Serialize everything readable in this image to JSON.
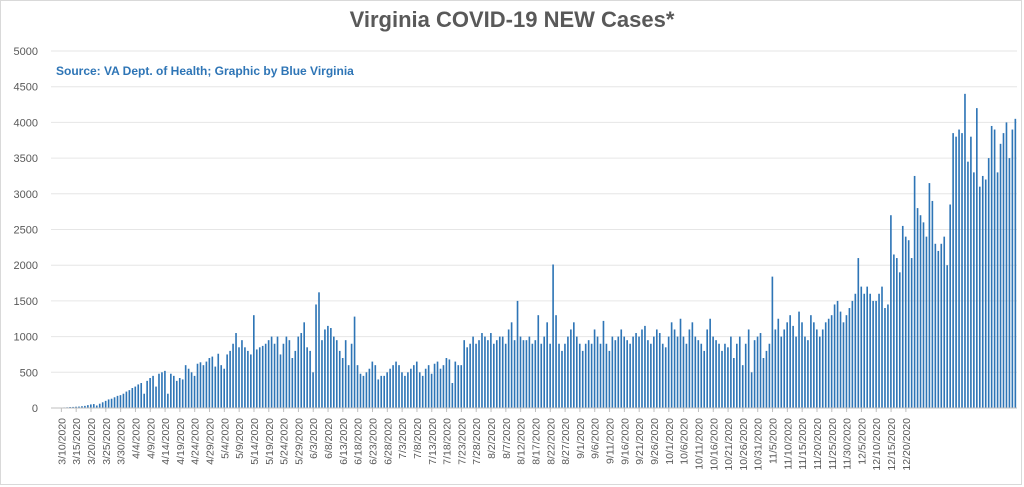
{
  "chart_data": {
    "type": "bar",
    "title": "Virginia COVID-19 NEW Cases*",
    "annotation": "Source: VA Dept. of Health; Graphic by Blue Virginia",
    "xlabel": "",
    "ylabel": "",
    "ylim": [
      0,
      5000
    ],
    "yticks": [
      0,
      500,
      1000,
      1500,
      2000,
      2500,
      3000,
      3500,
      4000,
      4500,
      5000
    ],
    "grid": "horizontal",
    "legend": "none",
    "bar_color": "#2e75b6",
    "x_start_date": "3/7/2020",
    "x_tick_labels": [
      "3/10/2020",
      "3/15/2020",
      "3/20/2020",
      "3/25/2020",
      "3/30/2020",
      "4/4/2020",
      "4/9/2020",
      "4/14/2020",
      "4/19/2020",
      "4/24/2020",
      "4/29/2020",
      "5/4/2020",
      "5/9/2020",
      "5/14/2020",
      "5/19/2020",
      "5/24/2020",
      "5/29/2020",
      "6/3/2020",
      "6/8/2020",
      "6/13/2020",
      "6/18/2020",
      "6/23/2020",
      "6/28/2020",
      "7/3/2020",
      "7/8/2020",
      "7/13/2020",
      "7/18/2020",
      "7/23/2020",
      "7/28/2020",
      "8/2/2020",
      "8/7/2020",
      "8/12/2020",
      "8/17/2020",
      "8/22/2020",
      "8/27/2020",
      "9/1/2020",
      "9/6/2020",
      "9/11/2020",
      "9/16/2020",
      "9/21/2020",
      "9/26/2020",
      "10/1/2020",
      "10/6/2020",
      "10/11/2020",
      "10/16/2020",
      "10/21/2020",
      "10/26/2020",
      "10/31/2020",
      "11/5/2020",
      "11/10/2020",
      "11/15/2020",
      "11/20/2020",
      "11/25/2020",
      "11/30/2020",
      "12/5/2020",
      "12/10/2020",
      "12/15/2020",
      "12/20/2020"
    ],
    "values": [
      2,
      3,
      5,
      4,
      8,
      10,
      14,
      15,
      18,
      20,
      25,
      30,
      40,
      50,
      55,
      35,
      60,
      80,
      100,
      120,
      130,
      150,
      170,
      180,
      200,
      230,
      250,
      280,
      300,
      330,
      350,
      200,
      380,
      420,
      450,
      300,
      480,
      500,
      520,
      200,
      480,
      450,
      380,
      420,
      400,
      600,
      550,
      500,
      450,
      620,
      640,
      600,
      650,
      700,
      720,
      580,
      760,
      600,
      550,
      750,
      800,
      900,
      1050,
      850,
      950,
      850,
      800,
      750,
      1300,
      820,
      850,
      870,
      900,
      950,
      1000,
      900,
      1000,
      750,
      900,
      1000,
      950,
      700,
      800,
      1000,
      1050,
      1200,
      850,
      800,
      500,
      1450,
      1620,
      950,
      1100,
      1150,
      1120,
      1000,
      950,
      800,
      700,
      950,
      600,
      900,
      1280,
      600,
      480,
      450,
      500,
      550,
      650,
      600,
      400,
      450,
      450,
      500,
      550,
      600,
      650,
      600,
      500,
      450,
      500,
      550,
      600,
      650,
      500,
      450,
      550,
      600,
      480,
      620,
      650,
      550,
      600,
      700,
      680,
      350,
      650,
      600,
      600,
      950,
      850,
      900,
      1000,
      900,
      950,
      1050,
      1000,
      950,
      1050,
      900,
      950,
      1000,
      1000,
      900,
      1100,
      1200,
      950,
      1500,
      1000,
      950,
      950,
      1000,
      900,
      950,
      1300,
      900,
      1000,
      1200,
      900,
      2010,
      1300,
      900,
      800,
      900,
      1000,
      1100,
      1200,
      1000,
      900,
      800,
      900,
      950,
      900,
      1100,
      1000,
      900,
      1220,
      900,
      800,
      1000,
      950,
      1000,
      1100,
      1000,
      950,
      900,
      1000,
      1050,
      1000,
      1100,
      1150,
      950,
      900,
      1000,
      1100,
      1050,
      900,
      850,
      1000,
      1200,
      1100,
      1000,
      1250,
      1000,
      900,
      1100,
      1200,
      1000,
      950,
      900,
      800,
      1100,
      1250,
      1000,
      950,
      900,
      800,
      900,
      850,
      1000,
      700,
      900,
      1000,
      600,
      900,
      1100,
      500,
      950,
      1000,
      1050,
      700,
      800,
      900,
      1840,
      1100,
      1250,
      1000,
      1100,
      1200,
      1300,
      1150,
      1000,
      1350,
      1200,
      1000,
      950,
      1300,
      1200,
      1100,
      1000,
      1100,
      1200,
      1250,
      1300,
      1450,
      1500,
      1350,
      1200,
      1300,
      1400,
      1500,
      1600,
      2100,
      1700,
      1600,
      1700,
      1600,
      1500,
      1500,
      1600,
      1700,
      1400,
      1450,
      2700,
      2150,
      2100,
      1900,
      2550,
      2400,
      2350,
      2100,
      3250,
      2800,
      2700,
      2600,
      2400,
      3150,
      2900,
      2300,
      2200,
      2300,
      2400,
      2000,
      2850,
      3850,
      3800,
      3900,
      3850,
      4400,
      3450,
      3800,
      3300,
      4200,
      3100,
      3250,
      3200,
      3500,
      3950,
      3900,
      3300,
      3700,
      3850,
      4000,
      3500,
      3900,
      4050
    ]
  }
}
